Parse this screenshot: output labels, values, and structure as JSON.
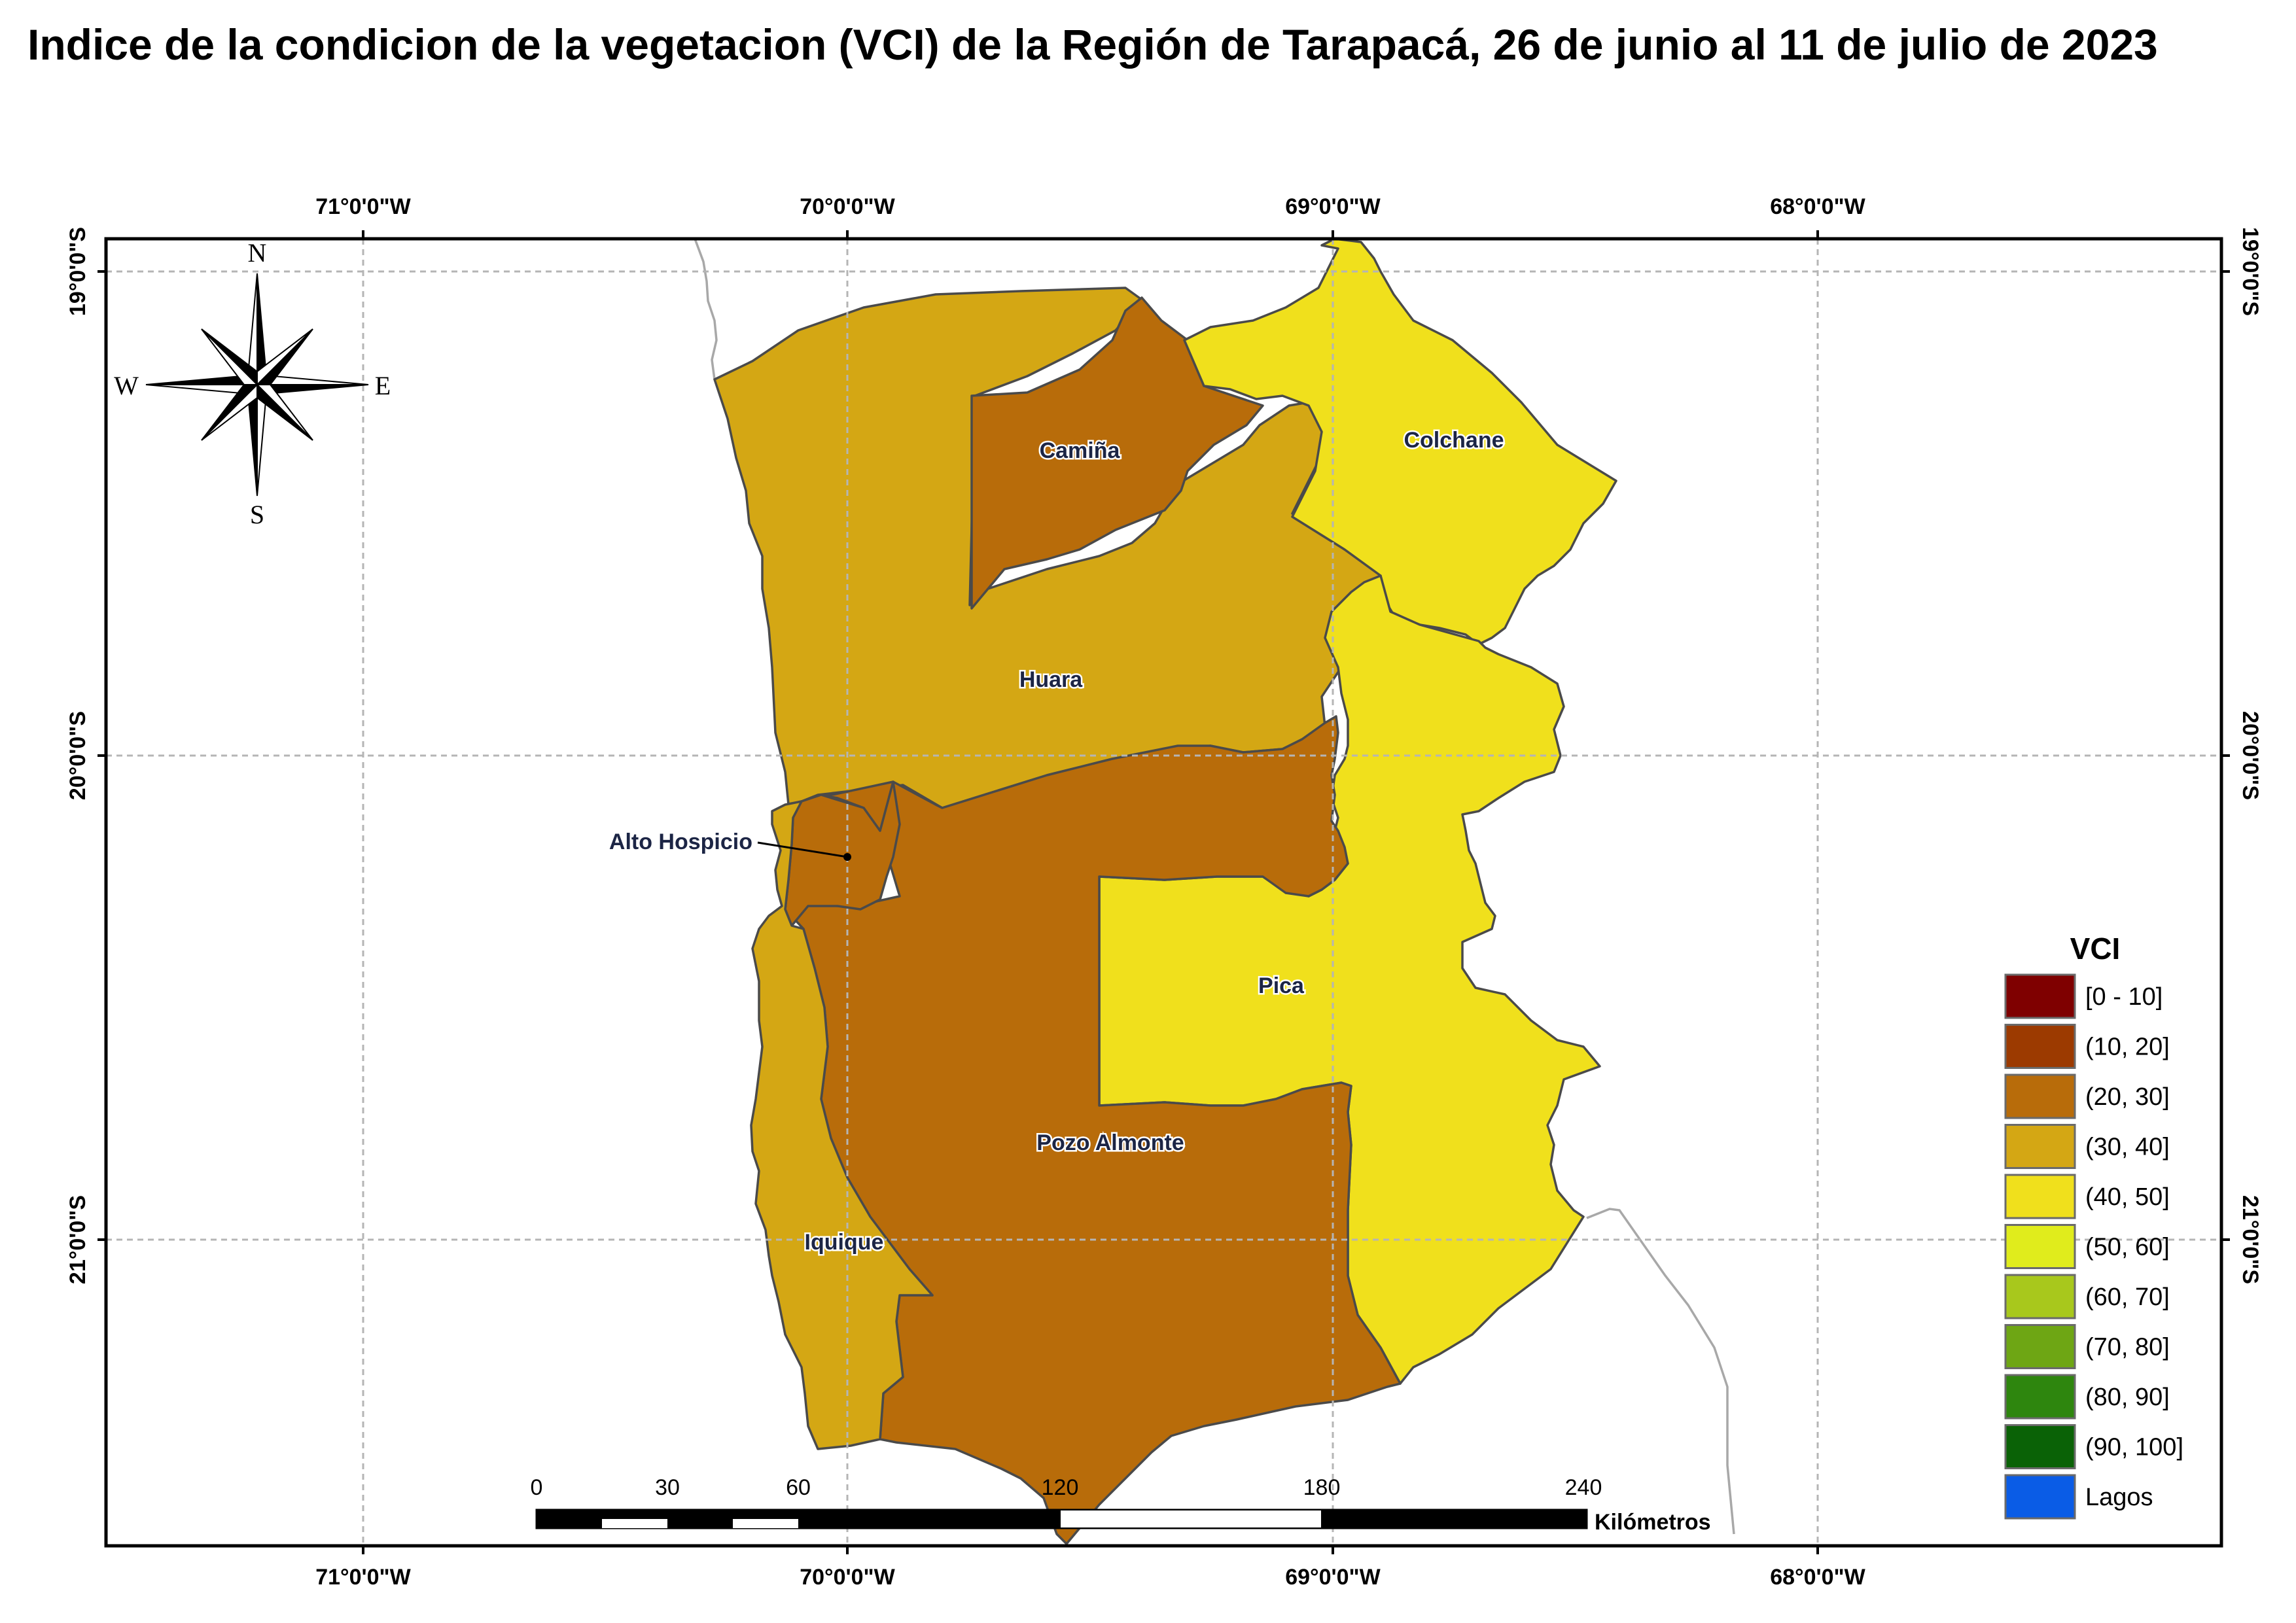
{
  "title": "Indice de la condicion de la vegetacion (VCI) de la Región de Tarapacá, 26 de junio al 11 de julio de 2023",
  "graticule": {
    "longitudes": [
      "71°0'0\"W",
      "70°0'0\"W",
      "69°0'0\"W",
      "68°0'0\"W"
    ],
    "latitudes": [
      "19°0'0\"S",
      "20°0'0\"S",
      "21°0'0\"S"
    ]
  },
  "compass": {
    "north": "N",
    "south": "S",
    "east": "E",
    "west": "W"
  },
  "municipalities": [
    {
      "name": "Camiña",
      "vci_class": "(20, 30]",
      "color": "#b86c0a"
    },
    {
      "name": "Colchane",
      "vci_class": "(40, 50]",
      "color": "#f0e01c"
    },
    {
      "name": "Huara",
      "vci_class": "(30, 40]",
      "color": "#d4a714"
    },
    {
      "name": "Alto Hospicio",
      "vci_class": "(20, 30]",
      "color": "#b86c0a"
    },
    {
      "name": "Pica",
      "vci_class": "(40, 50]",
      "color": "#f0e01c"
    },
    {
      "name": "Pozo Almonte",
      "vci_class": "(20, 30]",
      "color": "#b86c0a"
    },
    {
      "name": "Iquique",
      "vci_class": "(30, 40]",
      "color": "#d4a714"
    }
  ],
  "scale_bar": {
    "labels": [
      "0",
      "30",
      "60",
      "120",
      "180",
      "240"
    ],
    "unit": "Kilómetros"
  },
  "legend": {
    "title": "VCI",
    "items": [
      {
        "label": "[0 - 10]",
        "color": "#7f0000"
      },
      {
        "label": "(10, 20]",
        "color": "#9c3a00"
      },
      {
        "label": "(20, 30]",
        "color": "#b86c0a"
      },
      {
        "label": "(30, 40]",
        "color": "#d4a714"
      },
      {
        "label": "(40, 50]",
        "color": "#f0e01c"
      },
      {
        "label": "(50, 60]",
        "color": "#e0ec1c"
      },
      {
        "label": "(60, 70]",
        "color": "#a8c81c"
      },
      {
        "label": "(70, 80]",
        "color": "#6ea614"
      },
      {
        "label": "(80, 90]",
        "color": "#2e860e"
      },
      {
        "label": "(90, 100]",
        "color": "#0a6206"
      },
      {
        "label": "Lagos",
        "color": "#0a5ce6"
      }
    ]
  }
}
